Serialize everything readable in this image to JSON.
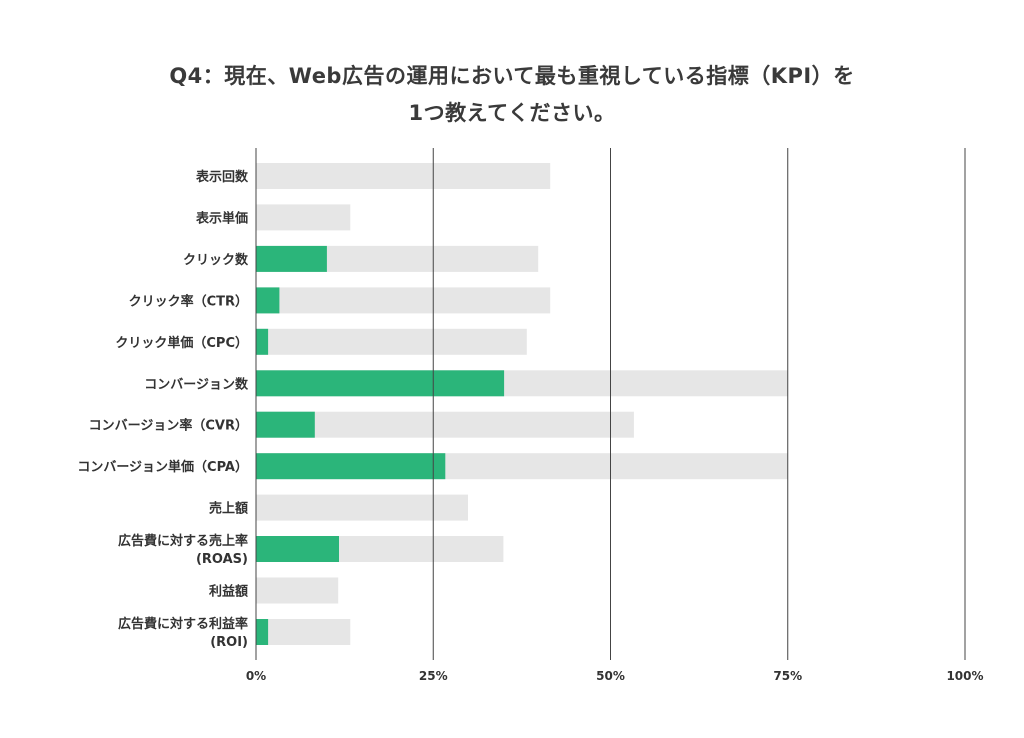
{
  "chart_data": {
    "type": "bar",
    "orientation": "horizontal",
    "stacked": false,
    "title": "Q4：現在、Web広告の運用において最も重視している指標（KPI）を1つ教えてください。",
    "title_lines": [
      "Q4：現在、Web広告の運用において最も重視している指標（KPI）を",
      "1つ教えてください。"
    ],
    "categories": [
      [
        "表示回数"
      ],
      [
        "表示単価"
      ],
      [
        "クリック数"
      ],
      [
        "クリック率（CTR）"
      ],
      [
        "クリック単価（CPC）"
      ],
      [
        "コンバージョン数"
      ],
      [
        "コンバージョン率（CVR）"
      ],
      [
        "コンバージョン単価（CPA）"
      ],
      [
        "売上額"
      ],
      [
        "広告費に対する売上率",
        "(ROAS)"
      ],
      [
        "利益額"
      ],
      [
        "広告費に対する利益率",
        "(ROI)"
      ]
    ],
    "series": [
      {
        "values": [
          41.5,
          13.3,
          39.8,
          41.5,
          38.2,
          75.0,
          53.3,
          75.0,
          29.9,
          34.9,
          11.6,
          13.3
        ],
        "color": "#e6e6e6"
      },
      {
        "values": [
          0,
          0,
          10.0,
          3.3,
          1.7,
          35.0,
          8.3,
          26.7,
          0,
          11.7,
          0,
          1.7
        ],
        "color": "#2bb57a"
      }
    ],
    "x_ticks": [
      "0%",
      "25%",
      "50%",
      "75%",
      "100%"
    ],
    "xlim": [
      0,
      100
    ],
    "grid": true,
    "legend": "none"
  }
}
